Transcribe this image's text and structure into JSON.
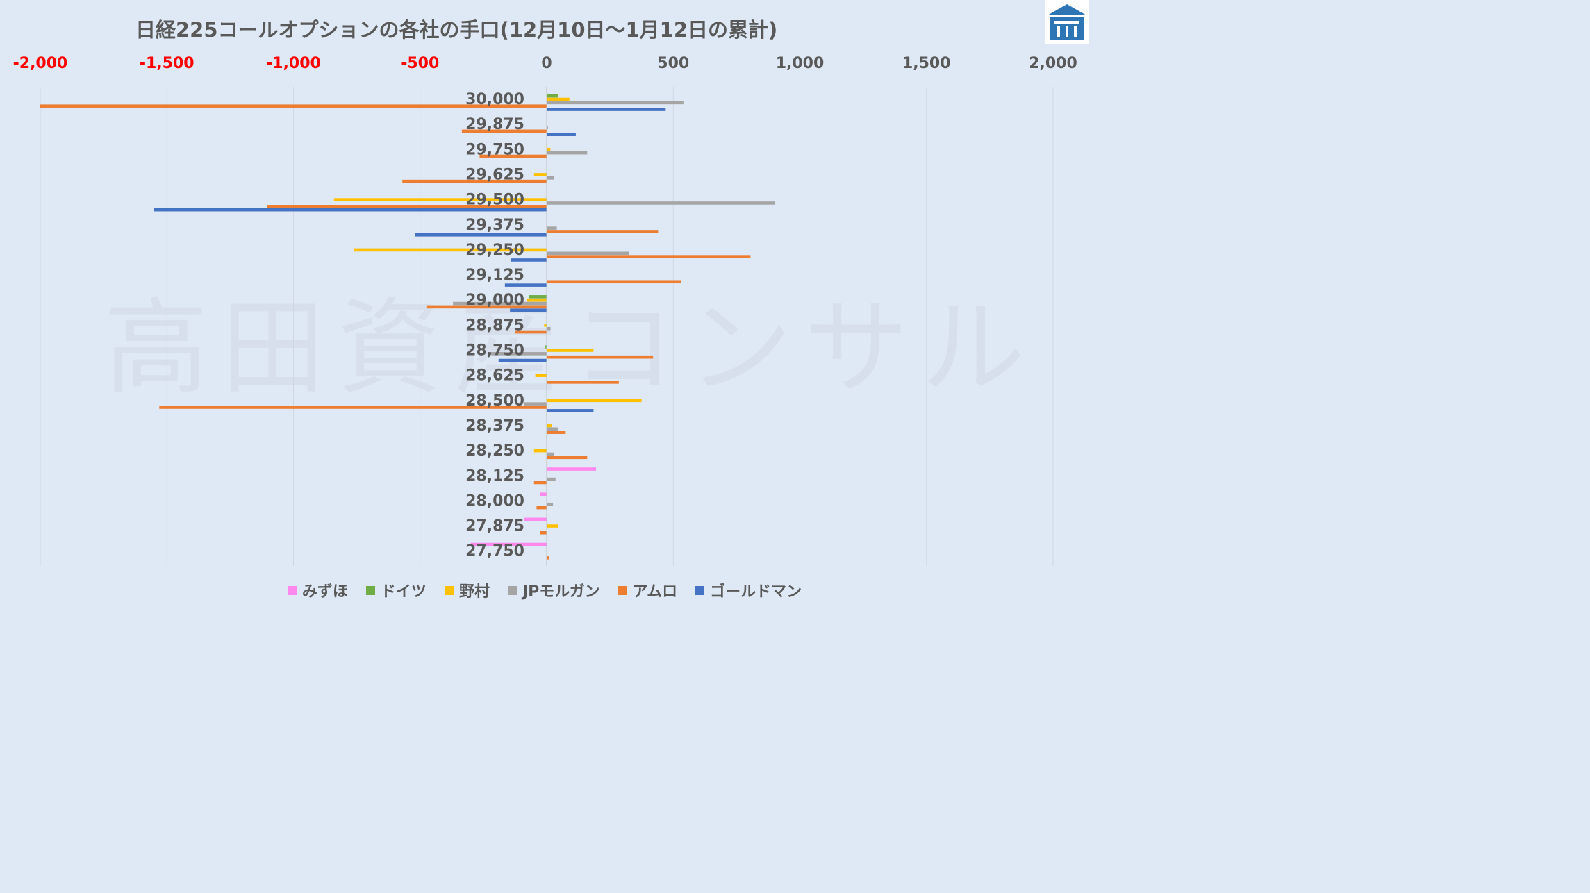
{
  "chart_data": {
    "type": "bar",
    "orientation": "horizontal",
    "title": "日経225コールオプションの各社の手口(12月10日～1月12日の累計)",
    "xlim": [
      -2000,
      2000
    ],
    "xticks": [
      -2000,
      -1500,
      -1000,
      -500,
      0,
      500,
      1000,
      1500,
      2000
    ],
    "xtick_labels": [
      "-2,000",
      "-1,500",
      "-1,000",
      "-500",
      "0",
      "500",
      "1,000",
      "1,500",
      "2,000"
    ],
    "negative_tick_color": "#ff0000",
    "positive_tick_color": "#595959",
    "grid": true,
    "legend_position": "bottom",
    "categories": [
      "30,000",
      "29,875",
      "29,750",
      "29,625",
      "29,500",
      "29,375",
      "29,250",
      "29,125",
      "29,000",
      "28,875",
      "28,750",
      "28,625",
      "28,500",
      "28,375",
      "28,250",
      "28,125",
      "28,000",
      "27,875",
      "27,750"
    ],
    "series": [
      {
        "name": "みずほ",
        "color": "#ff88ee",
        "values": [
          0,
          0,
          0,
          0,
          0,
          0,
          0,
          0,
          0,
          0,
          0,
          0,
          0,
          0,
          0,
          195,
          -25,
          -90,
          -300
        ]
      },
      {
        "name": "ドイツ",
        "color": "#70ad47",
        "values": [
          45,
          0,
          0,
          0,
          0,
          0,
          0,
          0,
          -70,
          0,
          -5,
          0,
          0,
          0,
          0,
          0,
          0,
          0,
          0
        ]
      },
      {
        "name": "野村",
        "color": "#ffc000",
        "values": [
          90,
          0,
          15,
          -50,
          -840,
          0,
          -760,
          0,
          -80,
          -10,
          185,
          -45,
          375,
          20,
          -50,
          0,
          0,
          45,
          0
        ]
      },
      {
        "name": "JPモルガン",
        "color": "#a5a5a5",
        "values": [
          540,
          5,
          160,
          30,
          900,
          40,
          325,
          0,
          -370,
          15,
          -220,
          0,
          -90,
          45,
          30,
          35,
          25,
          0,
          0
        ]
      },
      {
        "name": "アムロ",
        "color": "#ed7d31",
        "values": [
          -2000,
          -335,
          -265,
          -570,
          -1105,
          440,
          805,
          530,
          -475,
          -125,
          420,
          285,
          -1530,
          75,
          160,
          -50,
          -40,
          -25,
          10
        ]
      },
      {
        "name": "ゴールドマン",
        "color": "#4472c4",
        "values": [
          470,
          115,
          0,
          0,
          -1550,
          -520,
          -140,
          -165,
          -145,
          0,
          -190,
          0,
          185,
          0,
          0,
          0,
          0,
          0,
          0
        ]
      }
    ]
  },
  "watermark": "高田資産コンサル",
  "logo_icon": "shrine-logo-icon"
}
